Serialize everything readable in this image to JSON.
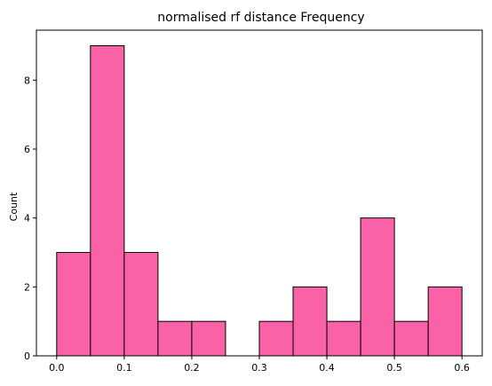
{
  "chart_data": {
    "type": "bar",
    "title": "normalised rf distance Frequency",
    "xlabel": "",
    "ylabel": "Count",
    "bin_edges": [
      0.0,
      0.05,
      0.1,
      0.15,
      0.2,
      0.25,
      0.3,
      0.35,
      0.4,
      0.45,
      0.5,
      0.55,
      0.6
    ],
    "values": [
      3,
      9,
      3,
      1,
      1,
      0,
      1,
      2,
      1,
      4,
      1,
      2
    ],
    "xlim": [
      -0.03,
      0.63
    ],
    "ylim": [
      0,
      9.45
    ],
    "xticks": [
      "0.0",
      "0.1",
      "0.2",
      "0.3",
      "0.4",
      "0.5",
      "0.6"
    ],
    "xtick_values": [
      0.0,
      0.1,
      0.2,
      0.3,
      0.4,
      0.5,
      0.6
    ],
    "yticks": [
      "0",
      "2",
      "4",
      "6",
      "8"
    ],
    "ytick_values": [
      0,
      2,
      4,
      6,
      8
    ],
    "bar_color": "#f962a6",
    "edge_color": "#000000",
    "grid": false
  }
}
